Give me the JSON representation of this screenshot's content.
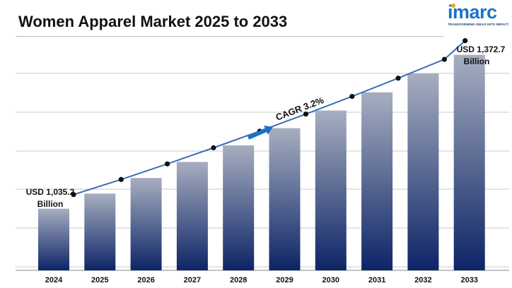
{
  "title": "Women Apparel Market 2025 to 2033",
  "logo": {
    "name": "imarc",
    "tagline": "TRANSFORMING IDEAS INTO IMPACT",
    "brand_color": "#1a73c8",
    "dot_color": "#f4a020"
  },
  "colors": {
    "bar_top": "#a7aec0",
    "bar_bottom": "#0d2466",
    "line": "#3a6fb5",
    "marker": "#111111",
    "arrow": "#1a73c8",
    "grid": "#c8c8c8"
  },
  "chart_data": {
    "type": "bar",
    "title": "Women Apparel Market 2025 to 2033",
    "categories": [
      "2024",
      "2025",
      "2026",
      "2027",
      "2028",
      "2029",
      "2030",
      "2031",
      "2032",
      "2033"
    ],
    "series": [
      {
        "values": [
          1035.2,
          1068.3,
          1102.5,
          1137.8,
          1174.2,
          1211.8,
          1250.5,
          1290.5,
          1331.8,
          1372.7
        ]
      }
    ],
    "trend_line": true,
    "ylim": [
      900,
      1400
    ],
    "grid": true,
    "annotations": {
      "start_label_line1": "USD 1,035.2",
      "start_label_line2": "Billion",
      "end_label_line1": "USD 1,372.7",
      "end_label_line2": "Billion",
      "cagr_label": "CAGR 3.2%"
    }
  }
}
